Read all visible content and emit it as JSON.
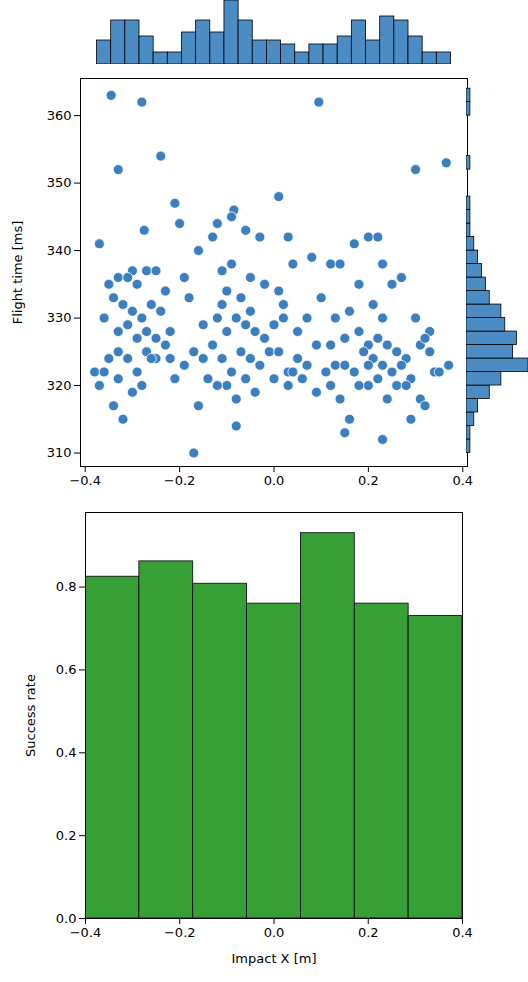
{
  "chart_data": [
    {
      "type": "histogram",
      "bins": [
        -0.375,
        -0.345,
        -0.315,
        -0.285,
        -0.255,
        -0.225,
        -0.195,
        -0.165,
        -0.135,
        -0.105,
        -0.075,
        -0.045,
        -0.015,
        0.015,
        0.045,
        0.075,
        0.105,
        0.135,
        0.165,
        0.195,
        0.225,
        0.255,
        0.285,
        0.315,
        0.345,
        0.375
      ],
      "counts": [
        6,
        11,
        11,
        7,
        3,
        3,
        8,
        11,
        8,
        16,
        11,
        6,
        6,
        5,
        3,
        5,
        5,
        7,
        11,
        6,
        12,
        11,
        7,
        3,
        3
      ],
      "color": "#4c8cc4",
      "xlim": [
        -0.41,
        0.41
      ],
      "ylim": [
        0,
        16
      ],
      "tick_labels": false
    },
    {
      "type": "scatter",
      "ylabel": "Flight time [ms]",
      "x": [
        -0.345,
        -0.28,
        0.095,
        -0.33,
        -0.24,
        0.3,
        0.365,
        0.01,
        -0.21,
        -0.2,
        -0.275,
        -0.37,
        -0.085,
        -0.09,
        -0.06,
        -0.13,
        -0.12,
        0.03,
        -0.03,
        0.17,
        0.2,
        0.22,
        0.08,
        -0.16,
        -0.27,
        -0.25,
        0.12,
        0.14,
        0.04,
        0.23,
        -0.11,
        0.25,
        0.18,
        -0.3,
        -0.33,
        -0.35,
        -0.31,
        -0.29,
        -0.02,
        0.01,
        -0.07,
        0.1,
        -0.18,
        -0.1,
        -0.05,
        0.02,
        0.07,
        0.21,
        0.16,
        0.23,
        0.3,
        0.33,
        -0.34,
        -0.32,
        -0.3,
        -0.28,
        -0.26,
        -0.24,
        -0.22,
        -0.36,
        -0.33,
        -0.31,
        -0.29,
        -0.27,
        -0.25,
        -0.12,
        -0.1,
        -0.08,
        -0.06,
        -0.04,
        -0.02,
        0.0,
        0.02,
        0.05,
        0.09,
        0.12,
        0.15,
        0.18,
        0.2,
        0.22,
        0.24,
        0.26,
        0.28,
        0.31,
        0.32,
        -0.38,
        -0.37,
        -0.35,
        -0.33,
        -0.31,
        -0.29,
        -0.27,
        -0.25,
        -0.23,
        -0.21,
        -0.19,
        -0.17,
        -0.15,
        -0.13,
        -0.11,
        -0.09,
        -0.07,
        -0.05,
        -0.03,
        -0.01,
        0.01,
        0.03,
        0.05,
        0.07,
        0.09,
        0.11,
        0.13,
        0.15,
        0.17,
        0.19,
        0.21,
        0.23,
        0.25,
        0.27,
        0.29,
        0.31,
        0.32,
        0.34,
        -0.34,
        -0.32,
        -0.3,
        -0.28,
        -0.16,
        -0.17,
        -0.08,
        -0.1,
        -0.06,
        -0.14,
        -0.04,
        0.0,
        0.04,
        0.06,
        0.14,
        0.15,
        0.16,
        0.2,
        0.22,
        0.23,
        0.24,
        0.29,
        0.26,
        0.28,
        0.35,
        0.37,
        -0.36,
        -0.33,
        -0.26,
        -0.22,
        -0.12,
        -0.08,
        0.12,
        0.18,
        0.2,
        0.03,
        -0.05,
        -0.09,
        0.13,
        0.09,
        -0.19,
        -0.23,
        -0.15,
        -0.11,
        0.27,
        0.33
      ],
      "y": [
        363,
        362,
        362,
        352,
        354,
        352,
        353,
        348,
        347,
        344,
        343,
        341,
        346,
        345,
        343,
        342,
        344,
        342,
        342,
        341,
        342,
        342,
        339,
        340,
        337,
        337,
        338,
        338,
        338,
        338,
        337,
        335,
        335,
        337,
        336,
        335,
        336,
        335,
        335,
        334,
        333,
        333,
        333,
        334,
        331,
        332,
        330,
        332,
        331,
        330,
        330,
        328,
        333,
        332,
        331,
        330,
        332,
        331,
        328,
        330,
        328,
        329,
        327,
        328,
        327,
        330,
        328,
        330,
        329,
        328,
        327,
        329,
        330,
        328,
        326,
        326,
        327,
        328,
        326,
        327,
        326,
        325,
        324,
        326,
        327,
        322,
        320,
        324,
        325,
        324,
        322,
        325,
        324,
        326,
        321,
        323,
        325,
        324,
        326,
        324,
        322,
        325,
        324,
        323,
        325,
        325,
        322,
        324,
        323,
        319,
        322,
        323,
        323,
        322,
        325,
        324,
        323,
        322,
        323,
        321,
        318,
        317,
        322,
        317,
        315,
        319,
        320,
        317,
        310,
        314,
        320,
        321,
        321,
        319,
        321,
        322,
        321,
        318,
        313,
        315,
        320,
        321,
        312,
        318,
        315,
        320,
        320,
        322,
        323,
        322,
        321,
        324,
        324,
        320,
        318,
        320,
        320,
        323,
        320,
        336,
        338,
        330,
        326,
        336,
        334,
        329,
        332,
        336,
        325
      ],
      "color": "#3c7fbf",
      "xlim": [
        -0.41,
        0.41
      ],
      "xticks": [
        {
          "value": -0.4,
          "label": "−0.4"
        },
        {
          "value": -0.2,
          "label": "−0.2"
        },
        {
          "value": 0,
          "label": "0.0"
        },
        {
          "value": 0.2,
          "label": "0.2"
        },
        {
          "value": 0.4,
          "label": "0.4"
        }
      ],
      "ylim": [
        308,
        365.5
      ],
      "yticks": [
        310,
        320,
        330,
        340,
        350,
        360
      ]
    },
    {
      "type": "histogram",
      "orientation": "horizontal",
      "bins": [
        310,
        312,
        314,
        316,
        318,
        320,
        322,
        324,
        326,
        328,
        330,
        332,
        334,
        336,
        338,
        340,
        342,
        344,
        346,
        348,
        350,
        352,
        354,
        356,
        358,
        360,
        362,
        364
      ],
      "counts": [
        1,
        1,
        2,
        3,
        6,
        9,
        16,
        12,
        13,
        10,
        9,
        6,
        5,
        4,
        3,
        2,
        1,
        1,
        1,
        0,
        0,
        1,
        0,
        0,
        0,
        1,
        1
      ],
      "color": "#4c8cc4",
      "xlim": [
        0,
        16
      ],
      "ylim": [
        308,
        365.5
      ],
      "tick_labels": false
    },
    {
      "type": "histogram",
      "xlabel": "Impact X [m]",
      "ylabel": "Success rate",
      "bins": [
        -0.4,
        -0.2857,
        -0.1714,
        -0.0571,
        0.0571,
        0.1714,
        0.2857,
        0.4
      ],
      "values": [
        0.825,
        0.862,
        0.808,
        0.76,
        0.93,
        0.76,
        0.73
      ],
      "color": "#36a036",
      "xlim": [
        -0.4,
        0.4
      ],
      "xticks": [
        {
          "value": -0.4,
          "label": "−0.4"
        },
        {
          "value": -0.2,
          "label": "−0.2"
        },
        {
          "value": 0,
          "label": "0.0"
        },
        {
          "value": 0.2,
          "label": "0.2"
        },
        {
          "value": 0.4,
          "label": "0.4"
        }
      ],
      "ylim": [
        0,
        0.98
      ],
      "yticks": [
        {
          "value": 0,
          "label": "0.0"
        },
        {
          "value": 0.2,
          "label": "0.2"
        },
        {
          "value": 0.4,
          "label": "0.4"
        },
        {
          "value": 0.6,
          "label": "0.6"
        },
        {
          "value": 0.8,
          "label": "0.8"
        }
      ]
    }
  ]
}
